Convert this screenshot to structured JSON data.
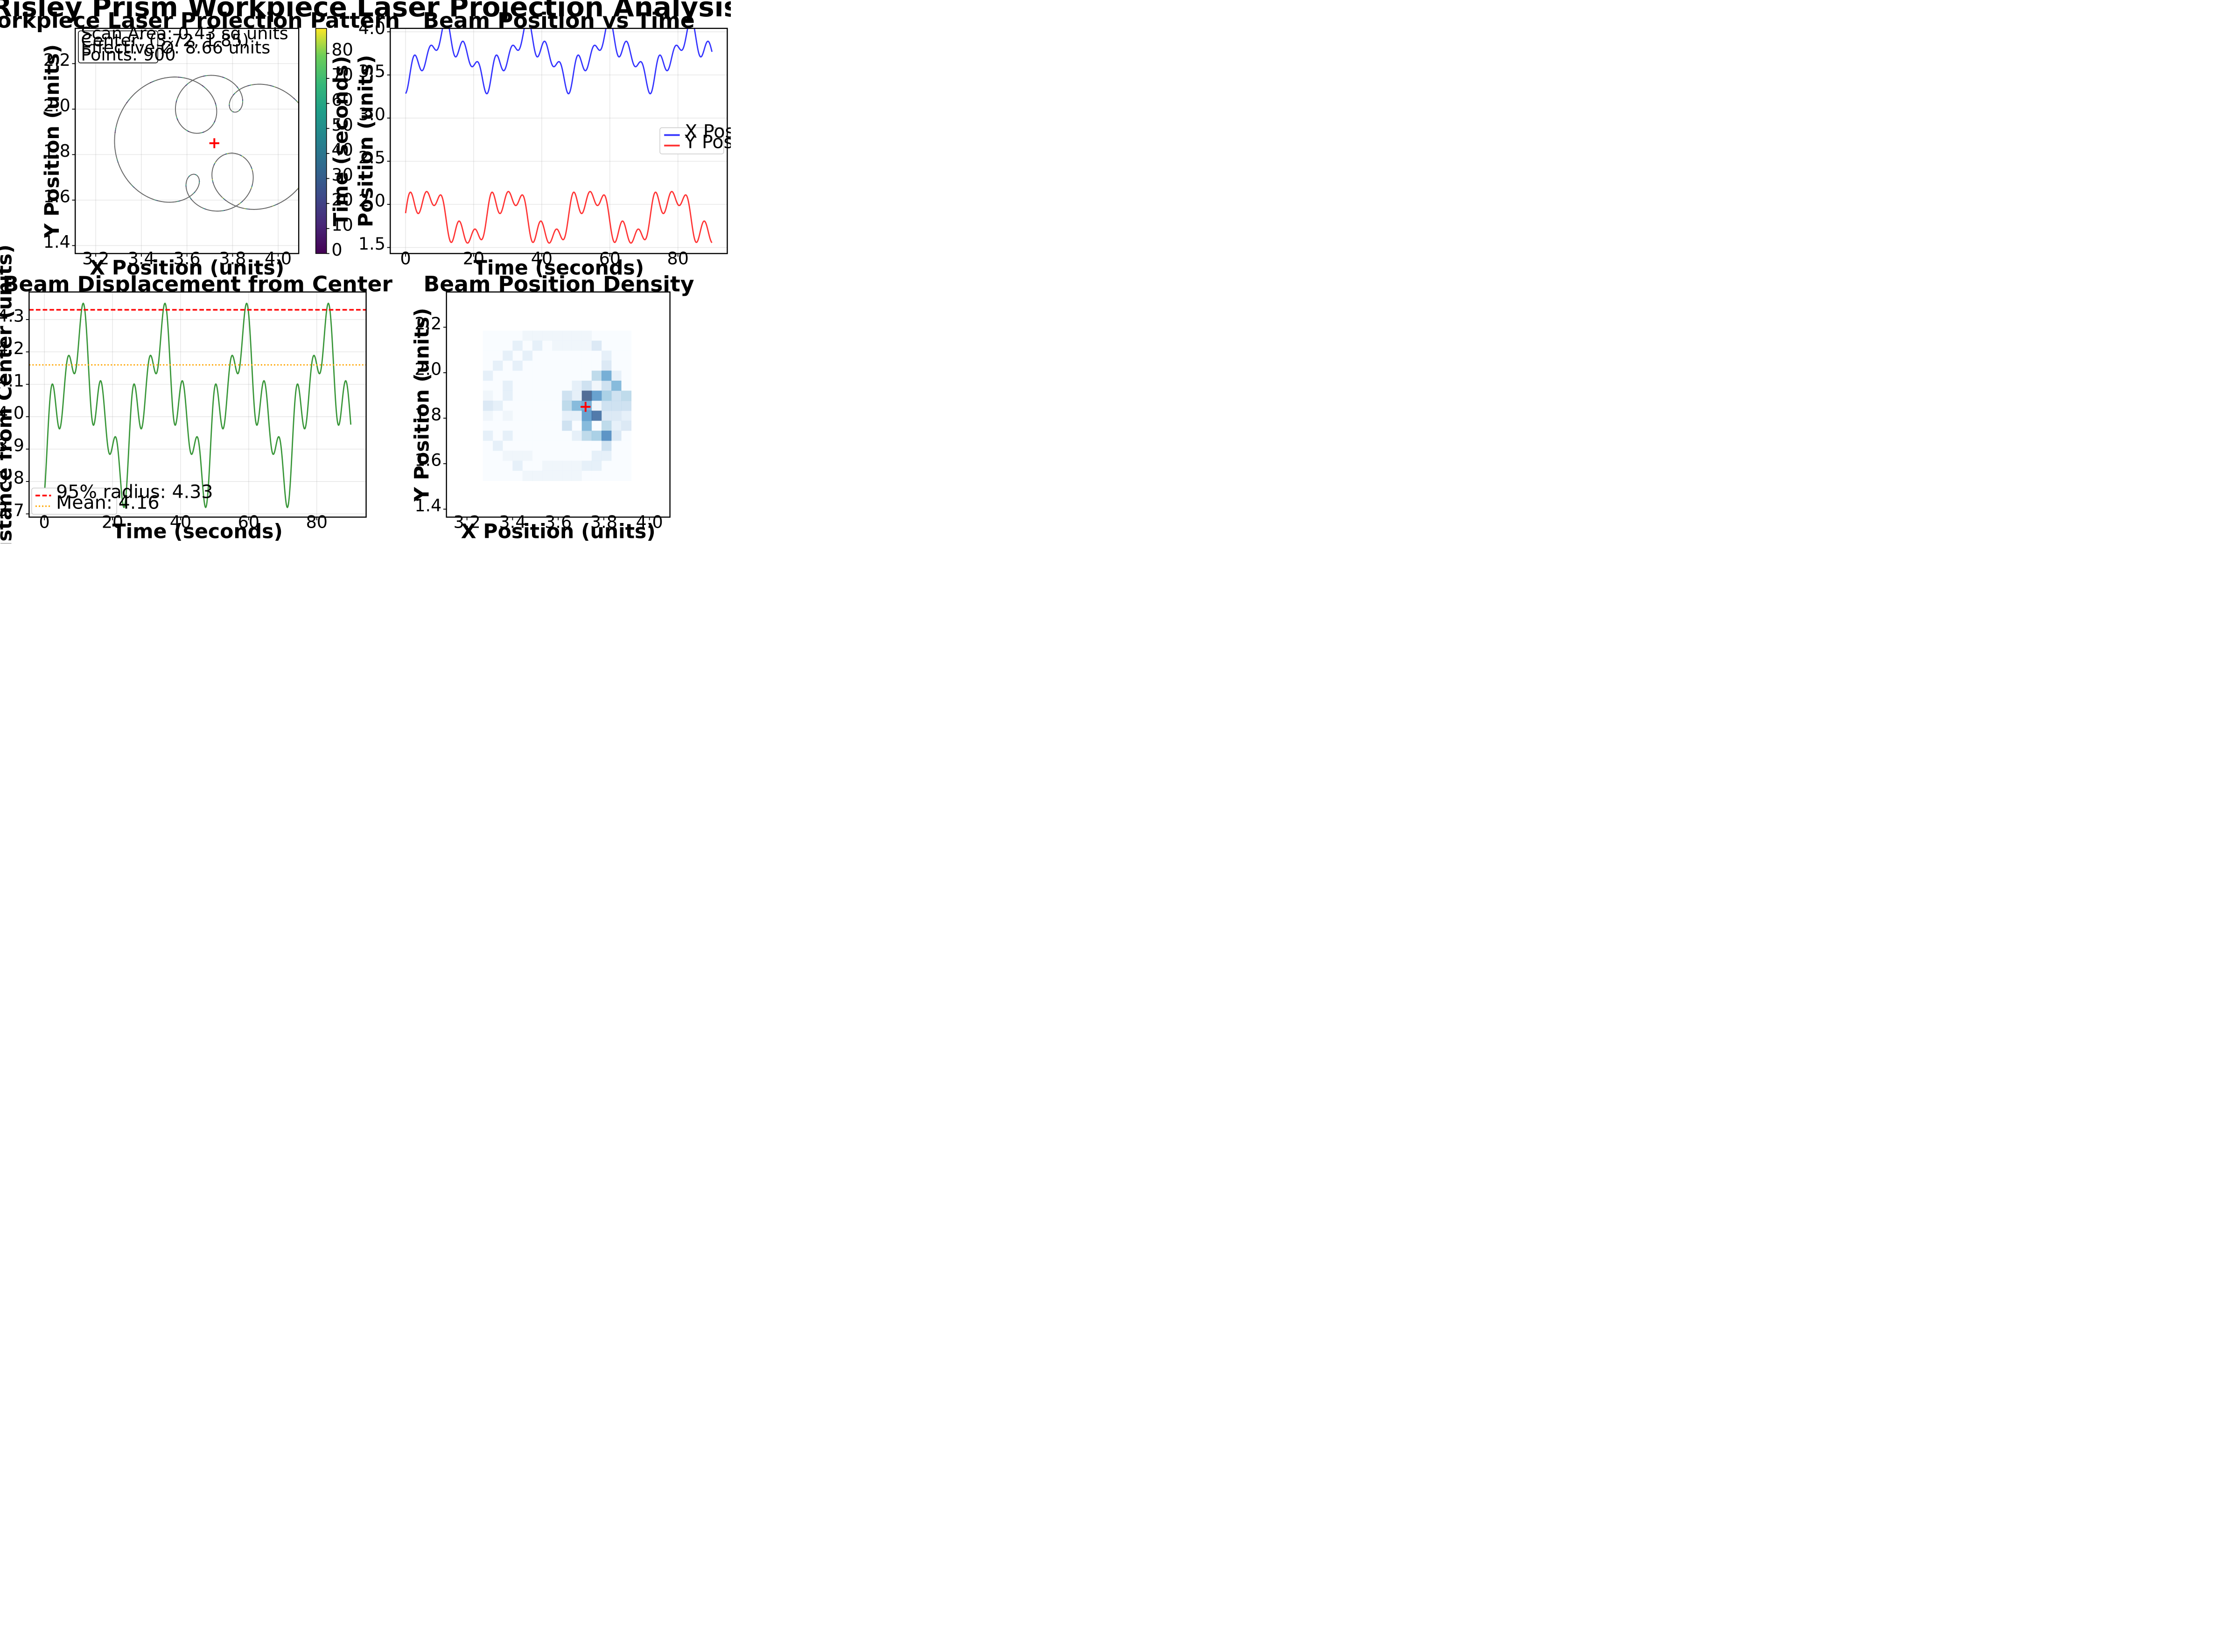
{
  "suptitle": "Risley Prism Workpiece Laser Projection Analysis",
  "chart_data": [
    {
      "id": "pattern",
      "type": "line",
      "title": "Workpiece Laser Projection Pattern",
      "xlabel": "X Position (units)",
      "ylabel": "Y Position (units)",
      "xlim": [
        3.11,
        4.09
      ],
      "ylim": [
        1.365,
        2.355
      ],
      "xticks": [
        "3.2",
        "3.4",
        "3.6",
        "3.8",
        "4.0"
      ],
      "xtick_values": [
        3.2,
        3.4,
        3.6,
        3.8,
        4.0
      ],
      "yticks": [
        "1.4",
        "1.6",
        "1.8",
        "2.0",
        "2.2"
      ],
      "ytick_values": [
        1.4,
        1.6,
        1.8,
        2.0,
        2.2
      ],
      "grid": true,
      "center_marker": [
        3.72,
        1.85
      ],
      "info_box": [
        "Scan Area: 0.43 sq units",
        "Center: (3.72, 1.85)",
        "Effective Ø: 8.66 units",
        "Points: 900"
      ],
      "path_description": "Two large offset circles and several small loops near the center, drawn as a gray trajectory colored by time",
      "colorbar": {
        "label": "Time (seconds)",
        "range": [
          0,
          90
        ],
        "ticks": [
          "0",
          "10",
          "20",
          "30",
          "40",
          "50",
          "60",
          "70",
          "80"
        ],
        "tick_values": [
          0,
          10,
          20,
          30,
          40,
          50,
          60,
          70,
          80
        ],
        "colormap": "viridis"
      },
      "colors": {
        "line": "#666666",
        "marker": "#ff0000"
      }
    },
    {
      "id": "position_time",
      "type": "line",
      "title": "Beam Position vs Time",
      "xlabel": "Time (seconds)",
      "ylabel": "Position (units)",
      "xlim": [
        -4.5,
        94.5
      ],
      "ylim": [
        1.43,
        4.04
      ],
      "xticks": [
        "0",
        "20",
        "40",
        "60",
        "80"
      ],
      "xtick_values": [
        0,
        20,
        40,
        60,
        80
      ],
      "yticks": [
        "1.5",
        "2.0",
        "2.5",
        "3.0",
        "3.5",
        "4.0"
      ],
      "ytick_values": [
        1.5,
        2.0,
        2.5,
        3.0,
        3.5,
        4.0
      ],
      "grid": true,
      "legend_position": "center-right",
      "series": [
        {
          "name": "X Position",
          "color": "#0000ff",
          "start": 3.27,
          "mean": 3.72,
          "min": 3.27,
          "max": 3.92
        },
        {
          "name": "Y Position",
          "color": "#ff0000",
          "start": 1.85,
          "mean": 1.85,
          "min": 1.52,
          "max": 2.18
        }
      ]
    },
    {
      "id": "displacement",
      "type": "line",
      "title": "Beam Displacement from Center",
      "xlabel": "Time (seconds)",
      "ylabel": "Distance from Center (units)",
      "xlim": [
        -4.5,
        94.5
      ],
      "ylim": [
        3.69,
        4.385
      ],
      "xticks": [
        "0",
        "20",
        "40",
        "60",
        "80"
      ],
      "xtick_values": [
        0,
        20,
        40,
        60,
        80
      ],
      "yticks": [
        "3.7",
        "3.8",
        "3.9",
        "4.0",
        "4.1",
        "4.2",
        "4.3"
      ],
      "ytick_values": [
        3.7,
        3.8,
        3.9,
        4.0,
        4.1,
        4.2,
        4.3
      ],
      "grid": true,
      "legend_position": "lower-left",
      "series": [
        {
          "name": "Distance",
          "color": "#228b22",
          "start": 3.72,
          "min": 3.72,
          "max": 4.35
        }
      ],
      "hlines": [
        {
          "label": "95% radius: 4.33",
          "value": 4.33,
          "color": "#ff0000",
          "style": "dashed"
        },
        {
          "label": "Mean: 4.16",
          "value": 4.16,
          "color": "#ffa500",
          "style": "dotted"
        }
      ]
    },
    {
      "id": "density",
      "type": "heatmap",
      "title": "Beam Position Density",
      "xlabel": "X Position (units)",
      "ylabel": "Y Position (units)",
      "xlim": [
        3.11,
        4.09
      ],
      "ylim": [
        1.365,
        2.355
      ],
      "xticks": [
        "3.2",
        "3.4",
        "3.6",
        "3.8",
        "4.0"
      ],
      "xtick_values": [
        3.2,
        3.4,
        3.6,
        3.8,
        4.0
      ],
      "yticks": [
        "1.4",
        "1.6",
        "1.8",
        "2.0",
        "2.2"
      ],
      "ytick_values": [
        1.4,
        1.6,
        1.8,
        2.0,
        2.2
      ],
      "bins_x": [
        3.27,
        3.92,
        15
      ],
      "bins_y": [
        1.525,
        2.185,
        15
      ],
      "colormap": "Blues",
      "center_marker": [
        3.72,
        1.85
      ],
      "counts": [
        [
          0,
          0,
          0,
          0,
          1,
          1,
          1,
          1,
          1,
          1,
          1,
          0,
          0,
          0,
          0
        ],
        [
          0,
          0,
          0,
          2,
          0,
          2,
          0,
          1,
          1,
          1,
          1,
          3,
          0,
          0,
          0
        ],
        [
          0,
          0,
          2,
          0,
          2,
          0,
          0,
          0,
          0,
          0,
          0,
          0,
          2,
          0,
          0
        ],
        [
          0,
          2,
          0,
          2,
          0,
          0,
          0,
          0,
          0,
          0,
          0,
          0,
          3,
          0,
          0
        ],
        [
          2,
          0,
          0,
          0,
          0,
          0,
          0,
          0,
          0,
          0,
          0,
          5,
          9,
          2,
          0
        ],
        [
          0,
          0,
          2,
          0,
          0,
          0,
          0,
          0,
          0,
          2,
          4,
          1,
          4,
          8,
          0
        ],
        [
          1,
          0,
          2,
          0,
          0,
          0,
          0,
          0,
          4,
          2,
          14,
          10,
          6,
          4,
          5
        ],
        [
          3,
          2,
          0,
          0,
          0,
          0,
          0,
          0,
          5,
          8,
          9,
          1,
          4,
          4,
          4
        ],
        [
          1,
          0,
          1,
          0,
          0,
          0,
          0,
          0,
          2,
          2,
          10,
          13,
          3,
          3,
          2
        ],
        [
          0,
          0,
          0,
          0,
          0,
          0,
          0,
          0,
          4,
          0,
          8,
          0,
          5,
          2,
          3
        ],
        [
          2,
          0,
          2,
          0,
          0,
          0,
          0,
          0,
          0,
          2,
          5,
          6,
          11,
          3,
          0
        ],
        [
          0,
          2,
          0,
          0,
          0,
          0,
          0,
          0,
          0,
          0,
          0,
          0,
          4,
          0,
          0
        ],
        [
          0,
          0,
          1,
          1,
          1,
          0,
          0,
          0,
          0,
          0,
          0,
          2,
          2,
          0,
          0
        ],
        [
          0,
          0,
          0,
          2,
          0,
          0,
          1,
          1,
          1,
          1,
          2,
          2,
          0,
          0,
          0
        ],
        [
          0,
          0,
          0,
          0,
          1,
          1,
          1,
          1,
          1,
          1,
          0,
          0,
          0,
          0,
          0
        ]
      ],
      "colors": {
        "marker": "#ff0000"
      }
    }
  ]
}
